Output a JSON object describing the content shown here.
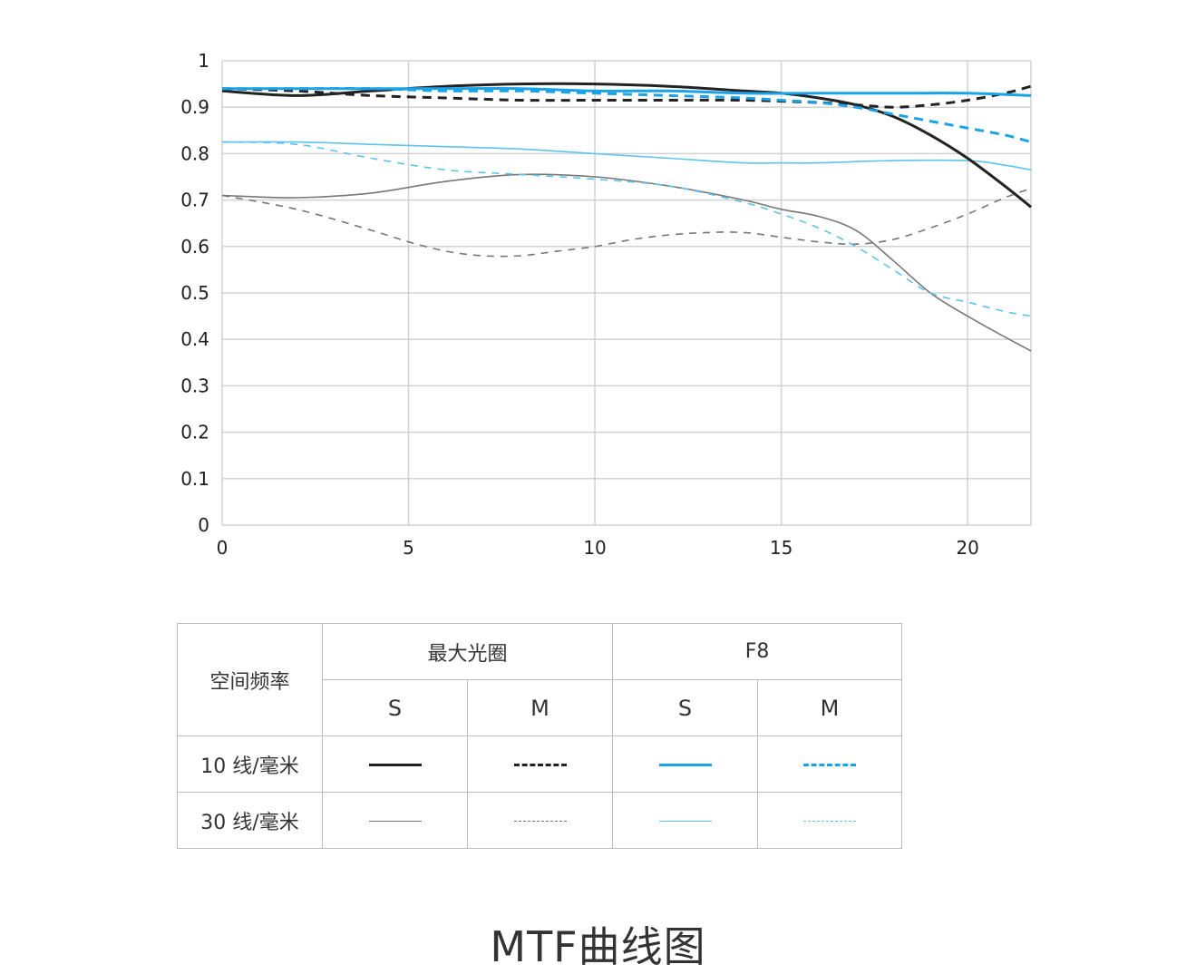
{
  "chart_data": {
    "type": "line",
    "title": "MTF曲线图",
    "xlim": [
      0,
      21.7
    ],
    "ylim": [
      0,
      1
    ],
    "x_ticks": [
      "0",
      "5",
      "10",
      "15",
      "20"
    ],
    "y_ticks": [
      "0",
      "0.1",
      "0.2",
      "0.3",
      "0.4",
      "0.5",
      "0.6",
      "0.7",
      "0.8",
      "0.9",
      "1"
    ],
    "grid": true,
    "series": [
      {
        "key": "max_s10",
        "color": "#222222",
        "width": 3,
        "dash": "",
        "x": [
          0,
          2,
          4,
          6,
          8,
          10,
          12,
          14,
          15,
          16,
          17,
          18,
          19,
          20,
          21,
          21.7
        ],
        "y": [
          0.935,
          0.925,
          0.935,
          0.945,
          0.95,
          0.95,
          0.945,
          0.935,
          0.93,
          0.92,
          0.905,
          0.88,
          0.84,
          0.79,
          0.73,
          0.685
        ]
      },
      {
        "key": "max_m10",
        "color": "#222222",
        "width": 3,
        "dash": "10,7",
        "x": [
          0,
          2,
          4,
          6,
          8,
          10,
          12,
          14,
          16,
          17,
          18,
          19,
          20,
          21,
          21.7
        ],
        "y": [
          0.94,
          0.935,
          0.925,
          0.92,
          0.915,
          0.915,
          0.915,
          0.915,
          0.91,
          0.905,
          0.9,
          0.905,
          0.915,
          0.93,
          0.945
        ]
      },
      {
        "key": "f8_s10",
        "color": "#1aa3e8",
        "width": 3,
        "dash": "",
        "x": [
          0,
          2,
          4,
          6,
          8,
          10,
          12,
          14,
          16,
          18,
          20,
          21.7
        ],
        "y": [
          0.94,
          0.94,
          0.94,
          0.94,
          0.94,
          0.935,
          0.935,
          0.93,
          0.93,
          0.93,
          0.93,
          0.925
        ]
      },
      {
        "key": "f8_m10",
        "color": "#1aa3e8",
        "width": 3,
        "dash": "10,7",
        "x": [
          0,
          2,
          4,
          6,
          8,
          10,
          12,
          14,
          15,
          16,
          17,
          18,
          19,
          20,
          21,
          21.7
        ],
        "y": [
          0.94,
          0.94,
          0.94,
          0.935,
          0.935,
          0.93,
          0.925,
          0.92,
          0.915,
          0.91,
          0.9,
          0.885,
          0.87,
          0.855,
          0.84,
          0.825
        ]
      },
      {
        "key": "max_s30",
        "color": "#777777",
        "width": 1.6,
        "dash": "",
        "x": [
          0,
          2,
          4,
          6,
          8,
          10,
          12,
          14,
          15,
          16,
          17,
          18,
          19,
          20,
          21,
          21.7
        ],
        "y": [
          0.71,
          0.705,
          0.715,
          0.74,
          0.755,
          0.75,
          0.73,
          0.7,
          0.68,
          0.665,
          0.635,
          0.57,
          0.5,
          0.45,
          0.405,
          0.375
        ]
      },
      {
        "key": "max_m30",
        "color": "#777777",
        "width": 1.6,
        "dash": "8,7",
        "x": [
          0,
          2,
          4,
          5,
          6,
          7,
          8,
          9,
          10,
          11,
          12,
          13,
          14,
          15,
          16,
          17,
          18,
          19,
          20,
          21,
          21.7
        ],
        "y": [
          0.71,
          0.68,
          0.635,
          0.61,
          0.59,
          0.58,
          0.58,
          0.59,
          0.6,
          0.615,
          0.625,
          0.63,
          0.63,
          0.62,
          0.61,
          0.605,
          0.615,
          0.64,
          0.67,
          0.705,
          0.725
        ]
      },
      {
        "key": "f8_s30",
        "color": "#5cc3f0",
        "width": 1.6,
        "dash": "",
        "x": [
          0,
          2,
          4,
          6,
          8,
          10,
          12,
          14,
          15,
          16,
          18,
          20,
          21,
          21.7
        ],
        "y": [
          0.825,
          0.825,
          0.82,
          0.815,
          0.81,
          0.8,
          0.79,
          0.78,
          0.78,
          0.78,
          0.785,
          0.785,
          0.775,
          0.765
        ]
      },
      {
        "key": "f8_m30",
        "color": "#5cc3f0",
        "width": 1.6,
        "dash": "8,7",
        "x": [
          0,
          2,
          4,
          6,
          8,
          10,
          12,
          14,
          15,
          16,
          17,
          18,
          19,
          20,
          21,
          21.7
        ],
        "y": [
          0.825,
          0.82,
          0.79,
          0.765,
          0.755,
          0.745,
          0.73,
          0.695,
          0.67,
          0.64,
          0.6,
          0.55,
          0.5,
          0.48,
          0.46,
          0.45
        ]
      }
    ]
  },
  "legend": {
    "header_freq": "空间频率",
    "header_max": "最大光圈",
    "header_f8": "F8",
    "s": "S",
    "m": "M",
    "row10": "10 线/毫米",
    "row30": "30 线/毫米"
  },
  "caption": "MTF曲线图"
}
